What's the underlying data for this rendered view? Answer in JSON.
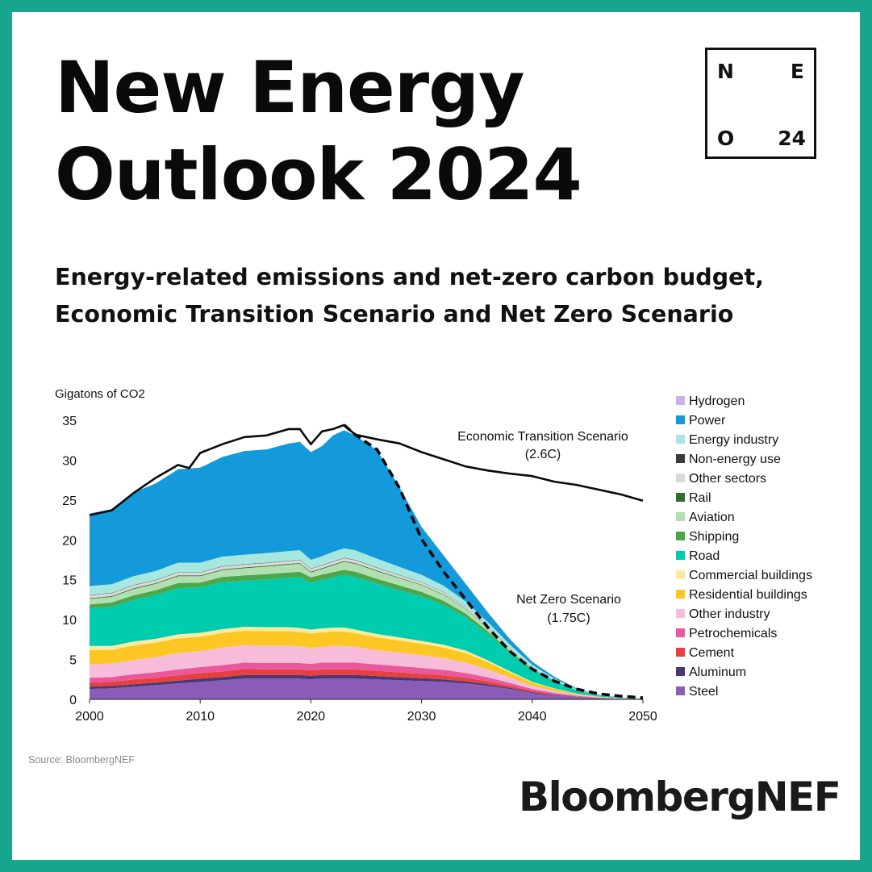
{
  "header": {
    "title_line1": "New Energy",
    "title_line2": "Outlook 2024",
    "badge": {
      "tl": "N",
      "tr": "E",
      "bl": "O",
      "br": "24"
    }
  },
  "subtitle_line1": "Energy-related emissions and net-zero carbon budget,",
  "subtitle_line2": "Economic Transition Scenario and Net Zero Scenario",
  "source": "Source: BloombergNEF",
  "logo": "BloombergNEF",
  "colors": {
    "frame": "#18A58E",
    "background": "#FFFFFF"
  },
  "chart_data": {
    "type": "area",
    "stacked": true,
    "ylabel": "Gigatons of CO2",
    "xlabel": "",
    "xlim": [
      2000,
      2050
    ],
    "ylim": [
      0,
      35
    ],
    "x_ticks": [
      2000,
      2010,
      2020,
      2030,
      2040,
      2050
    ],
    "y_ticks": [
      0,
      5,
      10,
      15,
      20,
      25,
      30,
      35
    ],
    "grid": false,
    "legend_position": "right",
    "x": [
      2000,
      2002,
      2004,
      2006,
      2008,
      2010,
      2012,
      2014,
      2016,
      2018,
      2019,
      2020,
      2021,
      2022,
      2023,
      2024,
      2026,
      2028,
      2030,
      2032,
      2034,
      2036,
      2038,
      2040,
      2042,
      2044,
      2046,
      2048,
      2050
    ],
    "series": [
      {
        "name": "Steel",
        "color": "#8A5CB8",
        "values": [
          1.3,
          1.4,
          1.6,
          1.8,
          2.0,
          2.2,
          2.4,
          2.6,
          2.6,
          2.6,
          2.6,
          2.5,
          2.6,
          2.6,
          2.6,
          2.6,
          2.5,
          2.4,
          2.3,
          2.2,
          2.0,
          1.7,
          1.3,
          0.8,
          0.5,
          0.3,
          0.15,
          0.05,
          0.02
        ]
      },
      {
        "name": "Aluminum",
        "color": "#4A3875",
        "values": [
          0.3,
          0.3,
          0.3,
          0.3,
          0.35,
          0.4,
          0.4,
          0.45,
          0.45,
          0.45,
          0.45,
          0.45,
          0.45,
          0.45,
          0.45,
          0.45,
          0.42,
          0.38,
          0.35,
          0.3,
          0.25,
          0.2,
          0.15,
          0.1,
          0.06,
          0.03,
          0.02,
          0.01,
          0.0
        ]
      },
      {
        "name": "Cement",
        "color": "#E8403F",
        "values": [
          0.5,
          0.5,
          0.6,
          0.6,
          0.65,
          0.7,
          0.7,
          0.75,
          0.7,
          0.7,
          0.7,
          0.7,
          0.7,
          0.7,
          0.7,
          0.7,
          0.65,
          0.6,
          0.55,
          0.5,
          0.45,
          0.35,
          0.25,
          0.15,
          0.1,
          0.05,
          0.02,
          0.01,
          0.0
        ]
      },
      {
        "name": "Petrochemicals",
        "color": "#E9589C",
        "values": [
          0.6,
          0.6,
          0.65,
          0.7,
          0.75,
          0.75,
          0.8,
          0.8,
          0.8,
          0.8,
          0.8,
          0.8,
          0.85,
          0.85,
          0.85,
          0.85,
          0.8,
          0.8,
          0.75,
          0.7,
          0.6,
          0.5,
          0.35,
          0.25,
          0.15,
          0.08,
          0.04,
          0.02,
          0.0
        ]
      },
      {
        "name": "Other industry",
        "color": "#F6BCD9",
        "values": [
          1.7,
          1.7,
          1.8,
          1.9,
          2.1,
          2.0,
          2.2,
          2.2,
          2.2,
          2.2,
          2.1,
          2.0,
          2.0,
          2.1,
          2.1,
          2.0,
          1.8,
          1.7,
          1.6,
          1.5,
          1.3,
          1.0,
          0.7,
          0.4,
          0.25,
          0.12,
          0.06,
          0.03,
          0.01
        ]
      },
      {
        "name": "Residential buildings",
        "color": "#FCC722",
        "values": [
          1.8,
          1.7,
          1.8,
          1.8,
          1.8,
          1.8,
          1.8,
          1.8,
          1.8,
          1.8,
          1.8,
          1.8,
          1.8,
          1.8,
          1.8,
          1.7,
          1.6,
          1.5,
          1.4,
          1.3,
          1.2,
          0.9,
          0.6,
          0.4,
          0.25,
          0.12,
          0.05,
          0.02,
          0.0
        ]
      },
      {
        "name": "Commercial buildings",
        "color": "#FCEAA0",
        "values": [
          0.5,
          0.5,
          0.5,
          0.5,
          0.5,
          0.5,
          0.5,
          0.5,
          0.5,
          0.5,
          0.5,
          0.5,
          0.5,
          0.5,
          0.5,
          0.45,
          0.42,
          0.4,
          0.38,
          0.35,
          0.32,
          0.25,
          0.17,
          0.11,
          0.07,
          0.03,
          0.01,
          0.0,
          0.0
        ]
      },
      {
        "name": "Road",
        "color": "#00CCB0",
        "values": [
          4.7,
          4.9,
          5.2,
          5.5,
          5.8,
          5.7,
          5.9,
          5.8,
          6.0,
          6.2,
          6.4,
          5.9,
          6.1,
          6.3,
          6.6,
          6.6,
          6.3,
          5.9,
          5.6,
          5.0,
          4.2,
          3.3,
          2.3,
          1.5,
          0.9,
          0.4,
          0.15,
          0.05,
          0.01
        ]
      },
      {
        "name": "Shipping",
        "color": "#4CA64A",
        "values": [
          0.5,
          0.55,
          0.6,
          0.6,
          0.65,
          0.6,
          0.65,
          0.65,
          0.65,
          0.65,
          0.65,
          0.65,
          0.65,
          0.65,
          0.65,
          0.65,
          0.62,
          0.6,
          0.55,
          0.5,
          0.42,
          0.32,
          0.22,
          0.13,
          0.07,
          0.03,
          0.01,
          0.0,
          0.0
        ]
      },
      {
        "name": "Aviation",
        "color": "#B2DFB2",
        "values": [
          0.7,
          0.7,
          0.8,
          0.8,
          0.85,
          0.8,
          0.85,
          0.9,
          0.95,
          1.0,
          1.0,
          0.6,
          0.7,
          0.85,
          1.0,
          1.0,
          0.95,
          0.9,
          0.85,
          0.75,
          0.6,
          0.45,
          0.3,
          0.18,
          0.1,
          0.04,
          0.01,
          0.0,
          0.0
        ]
      },
      {
        "name": "Rail",
        "color": "#2E6E2E",
        "values": [
          0.1,
          0.1,
          0.1,
          0.1,
          0.1,
          0.1,
          0.1,
          0.1,
          0.1,
          0.1,
          0.1,
          0.1,
          0.1,
          0.1,
          0.1,
          0.1,
          0.09,
          0.08,
          0.07,
          0.06,
          0.05,
          0.04,
          0.03,
          0.02,
          0.01,
          0.0,
          0.0,
          0.0,
          0.0
        ]
      },
      {
        "name": "Other sectors",
        "color": "#D9D9D9",
        "values": [
          0.35,
          0.35,
          0.35,
          0.35,
          0.35,
          0.35,
          0.35,
          0.35,
          0.35,
          0.35,
          0.35,
          0.35,
          0.35,
          0.35,
          0.35,
          0.35,
          0.33,
          0.3,
          0.28,
          0.25,
          0.2,
          0.15,
          0.1,
          0.06,
          0.03,
          0.01,
          0.0,
          0.0,
          0.0
        ]
      },
      {
        "name": "Non-energy use",
        "color": "#3A3A3A",
        "values": [
          0.05,
          0.05,
          0.05,
          0.05,
          0.05,
          0.05,
          0.05,
          0.05,
          0.05,
          0.05,
          0.05,
          0.05,
          0.05,
          0.05,
          0.05,
          0.05,
          0.05,
          0.05,
          0.04,
          0.04,
          0.03,
          0.02,
          0.01,
          0.0,
          0.0,
          0.0,
          0.0,
          0.0,
          0.0
        ]
      },
      {
        "name": "Energy industry",
        "color": "#A6E8E0",
        "values": [
          1.1,
          1.1,
          1.1,
          1.1,
          1.2,
          1.2,
          1.2,
          1.2,
          1.2,
          1.2,
          1.2,
          1.1,
          1.1,
          1.2,
          1.2,
          1.2,
          1.1,
          1.0,
          0.9,
          0.8,
          0.65,
          0.5,
          0.35,
          0.22,
          0.12,
          0.05,
          0.02,
          0.0,
          0.0
        ]
      },
      {
        "name": "Power",
        "color": "#149ADA",
        "values": [
          9.1,
          9.4,
          10.5,
          11.0,
          11.7,
          11.9,
          12.5,
          13.0,
          13.0,
          13.5,
          13.6,
          13.5,
          13.8,
          14.6,
          14.8,
          14.4,
          13.6,
          10.0,
          6.0,
          3.8,
          2.2,
          1.2,
          0.7,
          0.4,
          0.22,
          0.12,
          0.06,
          0.04,
          0.02
        ]
      },
      {
        "name": "Hydrogen",
        "color": "#CBB5E6",
        "values": [
          0,
          0,
          0,
          0,
          0,
          0,
          0,
          0,
          0,
          0,
          0,
          0,
          0,
          0,
          0,
          0,
          0,
          0,
          0,
          0.01,
          0.02,
          0.02,
          0.02,
          0.02,
          0.02,
          0.02,
          0.01,
          0.01,
          0.0
        ]
      }
    ],
    "lines": [
      {
        "name": "Economic Transition Scenario",
        "label": "Economic Transition Scenario",
        "sublabel": "(2.6C)",
        "style": "solid",
        "x": [
          2000,
          2002,
          2004,
          2006,
          2008,
          2009,
          2010,
          2012,
          2014,
          2016,
          2018,
          2019,
          2020,
          2021,
          2022,
          2023,
          2024,
          2026,
          2028,
          2030,
          2032,
          2034,
          2036,
          2038,
          2040,
          2042,
          2044,
          2046,
          2048,
          2050
        ],
        "values": [
          23.1,
          23.7,
          25.9,
          27.8,
          29.4,
          29.0,
          30.9,
          32.0,
          32.9,
          33.1,
          33.9,
          33.9,
          32.0,
          33.6,
          33.9,
          34.4,
          33.2,
          32.6,
          32.1,
          31.0,
          30.1,
          29.2,
          28.7,
          28.3,
          28.0,
          27.3,
          26.9,
          26.3,
          25.7,
          24.9
        ]
      },
      {
        "name": "Net Zero Scenario",
        "label": "Net Zero Scenario",
        "sublabel": "(1.75C)",
        "style": "dashed",
        "x": [
          2023,
          2024,
          2026,
          2028,
          2030,
          2032,
          2034,
          2036,
          2038,
          2040,
          2042,
          2044,
          2046,
          2048,
          2050
        ],
        "values": [
          34.4,
          33.2,
          31.3,
          26.5,
          20.1,
          16.0,
          12.5,
          9.0,
          6.0,
          3.8,
          2.3,
          1.3,
          0.7,
          0.4,
          0.2
        ]
      }
    ]
  }
}
